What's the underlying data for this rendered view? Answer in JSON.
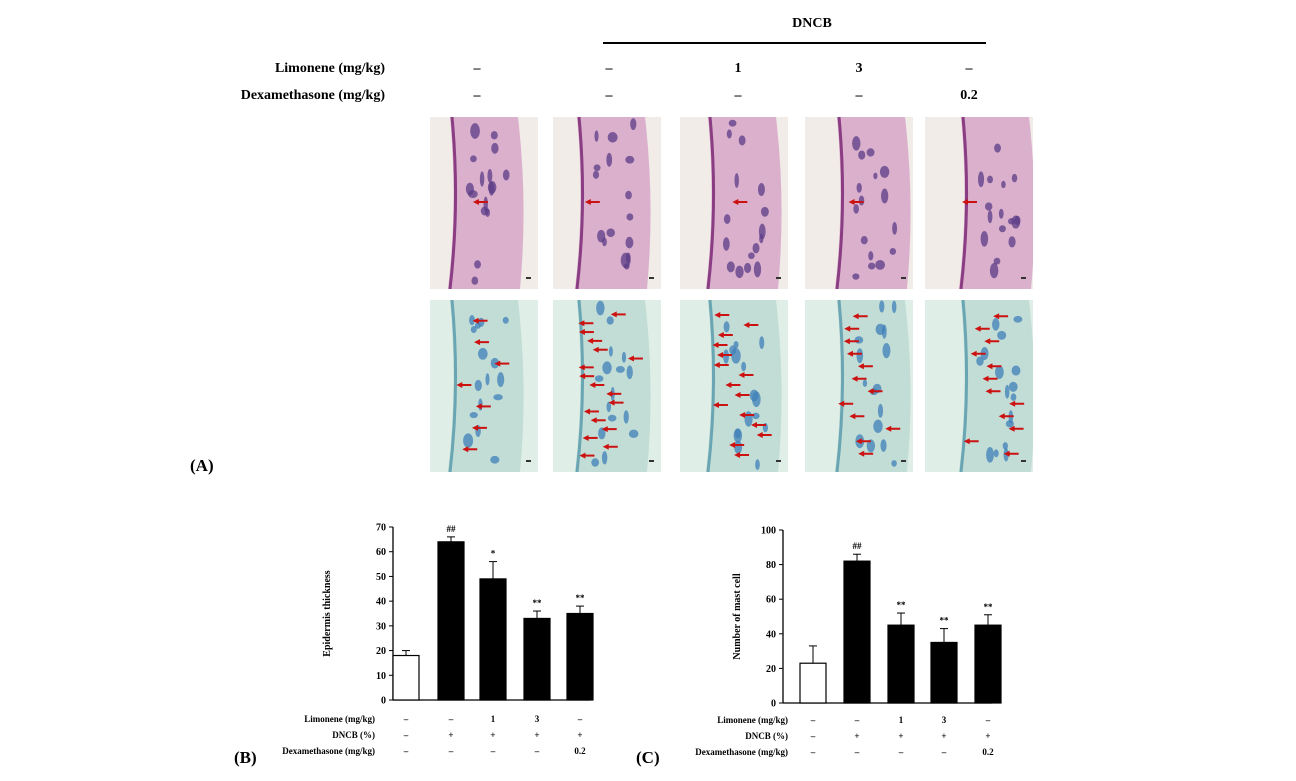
{
  "figure": {
    "panel_a_label": "(A)",
    "panel_b_label": "(B)",
    "panel_c_label": "(C)",
    "dncb_header": "DNCB",
    "row_labels": {
      "limonene": "Limonene (mg/kg)",
      "dexamethasone": "Dexamethasone (mg/kg)"
    },
    "limonene_values": [
      "–",
      "–",
      "1",
      "3",
      "–"
    ],
    "dexamethasone_values": [
      "–",
      "–",
      "–",
      "–",
      "0.2"
    ],
    "colors": {
      "he_stain": "#c77fb6",
      "tb_stain": "#a9cfc6",
      "arrow": "#cc1111",
      "bar_control": "#ffffff",
      "bar_treated": "#000000"
    }
  },
  "chart_data": [
    {
      "type": "bar",
      "panel": "(B)",
      "categories": [
        "Control",
        "DNCB",
        "DNCB+Limonene 1",
        "DNCB+Limonene 3",
        "DNCB+Dexamethasone 0.2"
      ],
      "values": [
        18,
        64,
        49,
        33,
        35
      ],
      "errors": [
        2,
        2,
        7,
        3,
        3
      ],
      "significance": [
        "",
        "##",
        "*",
        "**",
        "**"
      ],
      "ylabel": "Epidermis thickness",
      "ylim": [
        0,
        70
      ],
      "yticks": [
        "0",
        "10",
        "20",
        "30",
        "40",
        "50",
        "60",
        "70"
      ],
      "table_rows": [
        {
          "label": "Limonene (mg/kg)",
          "values": [
            "–",
            "–",
            "1",
            "3",
            "–"
          ]
        },
        {
          "label": "DNCB (%)",
          "values": [
            "–",
            "+",
            "+",
            "+",
            "+"
          ]
        },
        {
          "label": "Dexamethasone (mg/kg)",
          "values": [
            "–",
            "–",
            "–",
            "–",
            "0.2"
          ]
        }
      ]
    },
    {
      "type": "bar",
      "panel": "(C)",
      "categories": [
        "Control",
        "DNCB",
        "DNCB+Limonene 1",
        "DNCB+Limonene 3",
        "DNCB+Dexamethasone 0.2"
      ],
      "values": [
        23,
        82,
        45,
        35,
        45
      ],
      "errors": [
        10,
        4,
        7,
        8,
        6
      ],
      "significance": [
        "",
        "##",
        "**",
        "**",
        "**"
      ],
      "ylabel": "Number of mast cell",
      "ylim": [
        0,
        100
      ],
      "yticks": [
        "0",
        "20",
        "40",
        "60",
        "80",
        "100"
      ],
      "table_rows": [
        {
          "label": "Limonene (mg/kg)",
          "values": [
            "–",
            "–",
            "1",
            "3",
            "–"
          ]
        },
        {
          "label": "DNCB (%)",
          "values": [
            "–",
            "+",
            "+",
            "+",
            "+"
          ]
        },
        {
          "label": "Dexamethasone (mg/kg)",
          "values": [
            "–",
            "–",
            "–",
            "–",
            "0.2"
          ]
        }
      ]
    }
  ]
}
